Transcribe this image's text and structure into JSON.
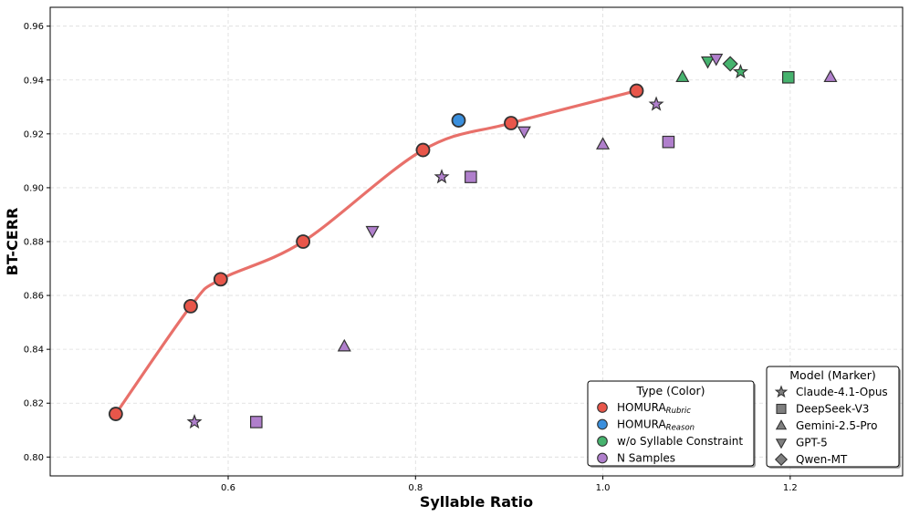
{
  "chart_data": {
    "type": "scatter",
    "xlabel": "Syllable Ratio",
    "ylabel": "BT-CERR",
    "xlim": [
      0.41,
      1.32
    ],
    "ylim": [
      0.793,
      0.967
    ],
    "xticks": [
      0.6,
      0.8,
      1.0,
      1.2
    ],
    "xtick_labels": [
      "0.6",
      "0.8",
      "1.0",
      "1.2"
    ],
    "yticks": [
      0.8,
      0.82,
      0.84,
      0.86,
      0.88,
      0.9,
      0.92,
      0.94,
      0.96
    ],
    "ytick_labels": [
      "0.80",
      "0.82",
      "0.84",
      "0.86",
      "0.88",
      "0.90",
      "0.92",
      "0.94",
      "0.96"
    ],
    "grid": true,
    "colors": {
      "rubric": "#e8564a",
      "reason": "#3a8fdd",
      "no_syllable": "#46b36e",
      "n_samples": "#b07fcc",
      "curve": "#e8706a",
      "legend_marker": "#7f7f7f"
    },
    "curve": {
      "name": "HOMURA Rubric trend",
      "x": [
        0.48,
        0.56,
        0.592,
        0.68,
        0.808,
        0.902,
        1.036
      ],
      "y": [
        0.816,
        0.856,
        0.866,
        0.88,
        0.914,
        0.924,
        0.936
      ]
    },
    "series": [
      {
        "key": "rubric",
        "name": "HOMURA Rubric",
        "marker": "circle",
        "points": [
          {
            "x": 0.48,
            "y": 0.816
          },
          {
            "x": 0.56,
            "y": 0.856
          },
          {
            "x": 0.592,
            "y": 0.866
          },
          {
            "x": 0.68,
            "y": 0.88
          },
          {
            "x": 0.808,
            "y": 0.914
          },
          {
            "x": 0.902,
            "y": 0.924
          },
          {
            "x": 1.036,
            "y": 0.936
          }
        ]
      },
      {
        "key": "reason",
        "name": "HOMURA Reason",
        "marker": "circle",
        "points": [
          {
            "x": 0.846,
            "y": 0.925
          }
        ]
      },
      {
        "key": "no_syllable",
        "name": "w/o Syllable Constraint",
        "points": [
          {
            "x": 1.147,
            "y": 0.943,
            "marker": "star"
          },
          {
            "x": 1.198,
            "y": 0.941,
            "marker": "square"
          },
          {
            "x": 1.085,
            "y": 0.941,
            "marker": "triangle"
          },
          {
            "x": 1.112,
            "y": 0.947,
            "marker": "tri-down"
          },
          {
            "x": 1.136,
            "y": 0.946,
            "marker": "diamond"
          }
        ]
      },
      {
        "key": "n_samples",
        "name": "N Samples",
        "points": [
          {
            "x": 0.564,
            "y": 0.813,
            "marker": "star"
          },
          {
            "x": 0.828,
            "y": 0.904,
            "marker": "star"
          },
          {
            "x": 1.057,
            "y": 0.931,
            "marker": "star"
          },
          {
            "x": 0.63,
            "y": 0.813,
            "marker": "square"
          },
          {
            "x": 0.859,
            "y": 0.904,
            "marker": "square"
          },
          {
            "x": 1.07,
            "y": 0.917,
            "marker": "square"
          },
          {
            "x": 0.724,
            "y": 0.841,
            "marker": "triangle"
          },
          {
            "x": 1.0,
            "y": 0.916,
            "marker": "triangle"
          },
          {
            "x": 1.243,
            "y": 0.941,
            "marker": "triangle"
          },
          {
            "x": 0.754,
            "y": 0.884,
            "marker": "tri-down"
          },
          {
            "x": 0.916,
            "y": 0.921,
            "marker": "tri-down"
          },
          {
            "x": 1.121,
            "y": 0.948,
            "marker": "tri-down"
          }
        ]
      }
    ],
    "legends": [
      {
        "title": "Type (Color)",
        "placement": "lower-right-inner",
        "entries": [
          {
            "main": "HOMURA",
            "sub": "Rubric",
            "color_key": "rubric",
            "marker": "circle"
          },
          {
            "main": "HOMURA",
            "sub": "Reason",
            "color_key": "reason",
            "marker": "circle"
          },
          {
            "main": "w/o Syllable Constraint",
            "sub": "",
            "color_key": "no_syllable",
            "marker": "circle"
          },
          {
            "main": "N Samples",
            "sub": "",
            "color_key": "n_samples",
            "marker": "circle"
          }
        ]
      },
      {
        "title": "Model (Marker)",
        "placement": "lower-right",
        "entries": [
          {
            "main": "Claude-4.1-Opus",
            "sub": "",
            "marker": "star"
          },
          {
            "main": "DeepSeek-V3",
            "sub": "",
            "marker": "square"
          },
          {
            "main": "Gemini-2.5-Pro",
            "sub": "",
            "marker": "triangle"
          },
          {
            "main": "GPT-5",
            "sub": "",
            "marker": "tri-down"
          },
          {
            "main": "Qwen-MT",
            "sub": "",
            "marker": "diamond"
          }
        ]
      }
    ]
  }
}
